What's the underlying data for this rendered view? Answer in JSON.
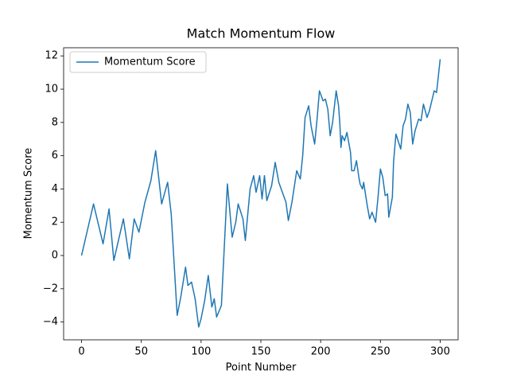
{
  "chart_data": {
    "type": "line",
    "title": "Match Momentum Flow",
    "xlabel": "Point Number",
    "ylabel": "Momentum Score",
    "x": [
      0,
      10,
      18,
      23,
      27,
      35,
      40,
      44,
      48,
      53,
      58,
      62,
      67,
      72,
      75,
      80,
      83,
      87,
      89,
      92,
      95,
      98,
      100,
      103,
      106,
      109,
      111,
      113,
      117,
      122,
      126,
      129,
      131,
      135,
      137,
      141,
      144,
      146,
      149,
      151,
      153,
      155,
      159,
      162,
      165,
      171,
      173,
      176,
      180,
      183,
      185,
      187,
      190,
      192,
      195,
      197,
      199,
      202,
      204,
      206,
      208,
      210,
      213,
      215,
      216,
      217,
      218,
      220,
      222,
      225,
      226,
      228,
      230,
      232,
      233,
      235,
      236,
      239,
      241,
      243,
      246,
      248,
      250,
      252,
      254,
      256,
      257,
      260,
      261,
      263,
      267,
      269,
      271,
      273,
      275,
      277,
      279,
      282,
      284,
      286,
      289,
      291,
      295,
      297,
      300
    ],
    "series": [
      {
        "name": "Momentum Score",
        "color": "#1f77b4",
        "values": [
          0,
          3.1,
          0.7,
          2.8,
          -0.3,
          2.2,
          -0.2,
          2.2,
          1.4,
          3.2,
          4.5,
          6.3,
          3.1,
          4.4,
          2.5,
          -3.6,
          -2.5,
          -0.7,
          -1.8,
          -1.6,
          -2.6,
          -4.3,
          -3.8,
          -2.7,
          -1.2,
          -3.1,
          -2.6,
          -3.7,
          -3.0,
          4.3,
          1.1,
          2.0,
          3.1,
          2.2,
          0.9,
          4.0,
          4.8,
          3.8,
          4.8,
          3.4,
          4.8,
          3.3,
          4.2,
          5.6,
          4.4,
          3.2,
          2.1,
          3.2,
          5.1,
          4.6,
          6.0,
          8.3,
          9.0,
          7.8,
          6.7,
          8.2,
          9.9,
          9.3,
          9.4,
          8.8,
          7.2,
          8.0,
          9.9,
          9.0,
          8.0,
          6.5,
          7.2,
          6.9,
          7.4,
          6.2,
          5.1,
          5.1,
          5.7,
          4.7,
          4.3,
          4.0,
          4.4,
          3.0,
          2.2,
          2.6,
          2.0,
          3.5,
          5.2,
          4.7,
          3.6,
          3.7,
          2.3,
          3.5,
          5.6,
          7.3,
          6.4,
          7.8,
          8.2,
          9.1,
          8.6,
          6.7,
          7.5,
          8.2,
          8.1,
          9.1,
          8.3,
          8.7,
          9.9,
          9.8,
          11.8
        ]
      }
    ],
    "xlim": [
      -15,
      315
    ],
    "ylim": [
      -5.07,
      12.49
    ],
    "xticks": [
      0,
      50,
      100,
      150,
      200,
      250,
      300
    ],
    "yticks": [
      {
        "value": -4,
        "label": "−4"
      },
      {
        "value": -2,
        "label": "−2"
      },
      0,
      2,
      4,
      6,
      8,
      10,
      12
    ],
    "legend": "upper left"
  }
}
